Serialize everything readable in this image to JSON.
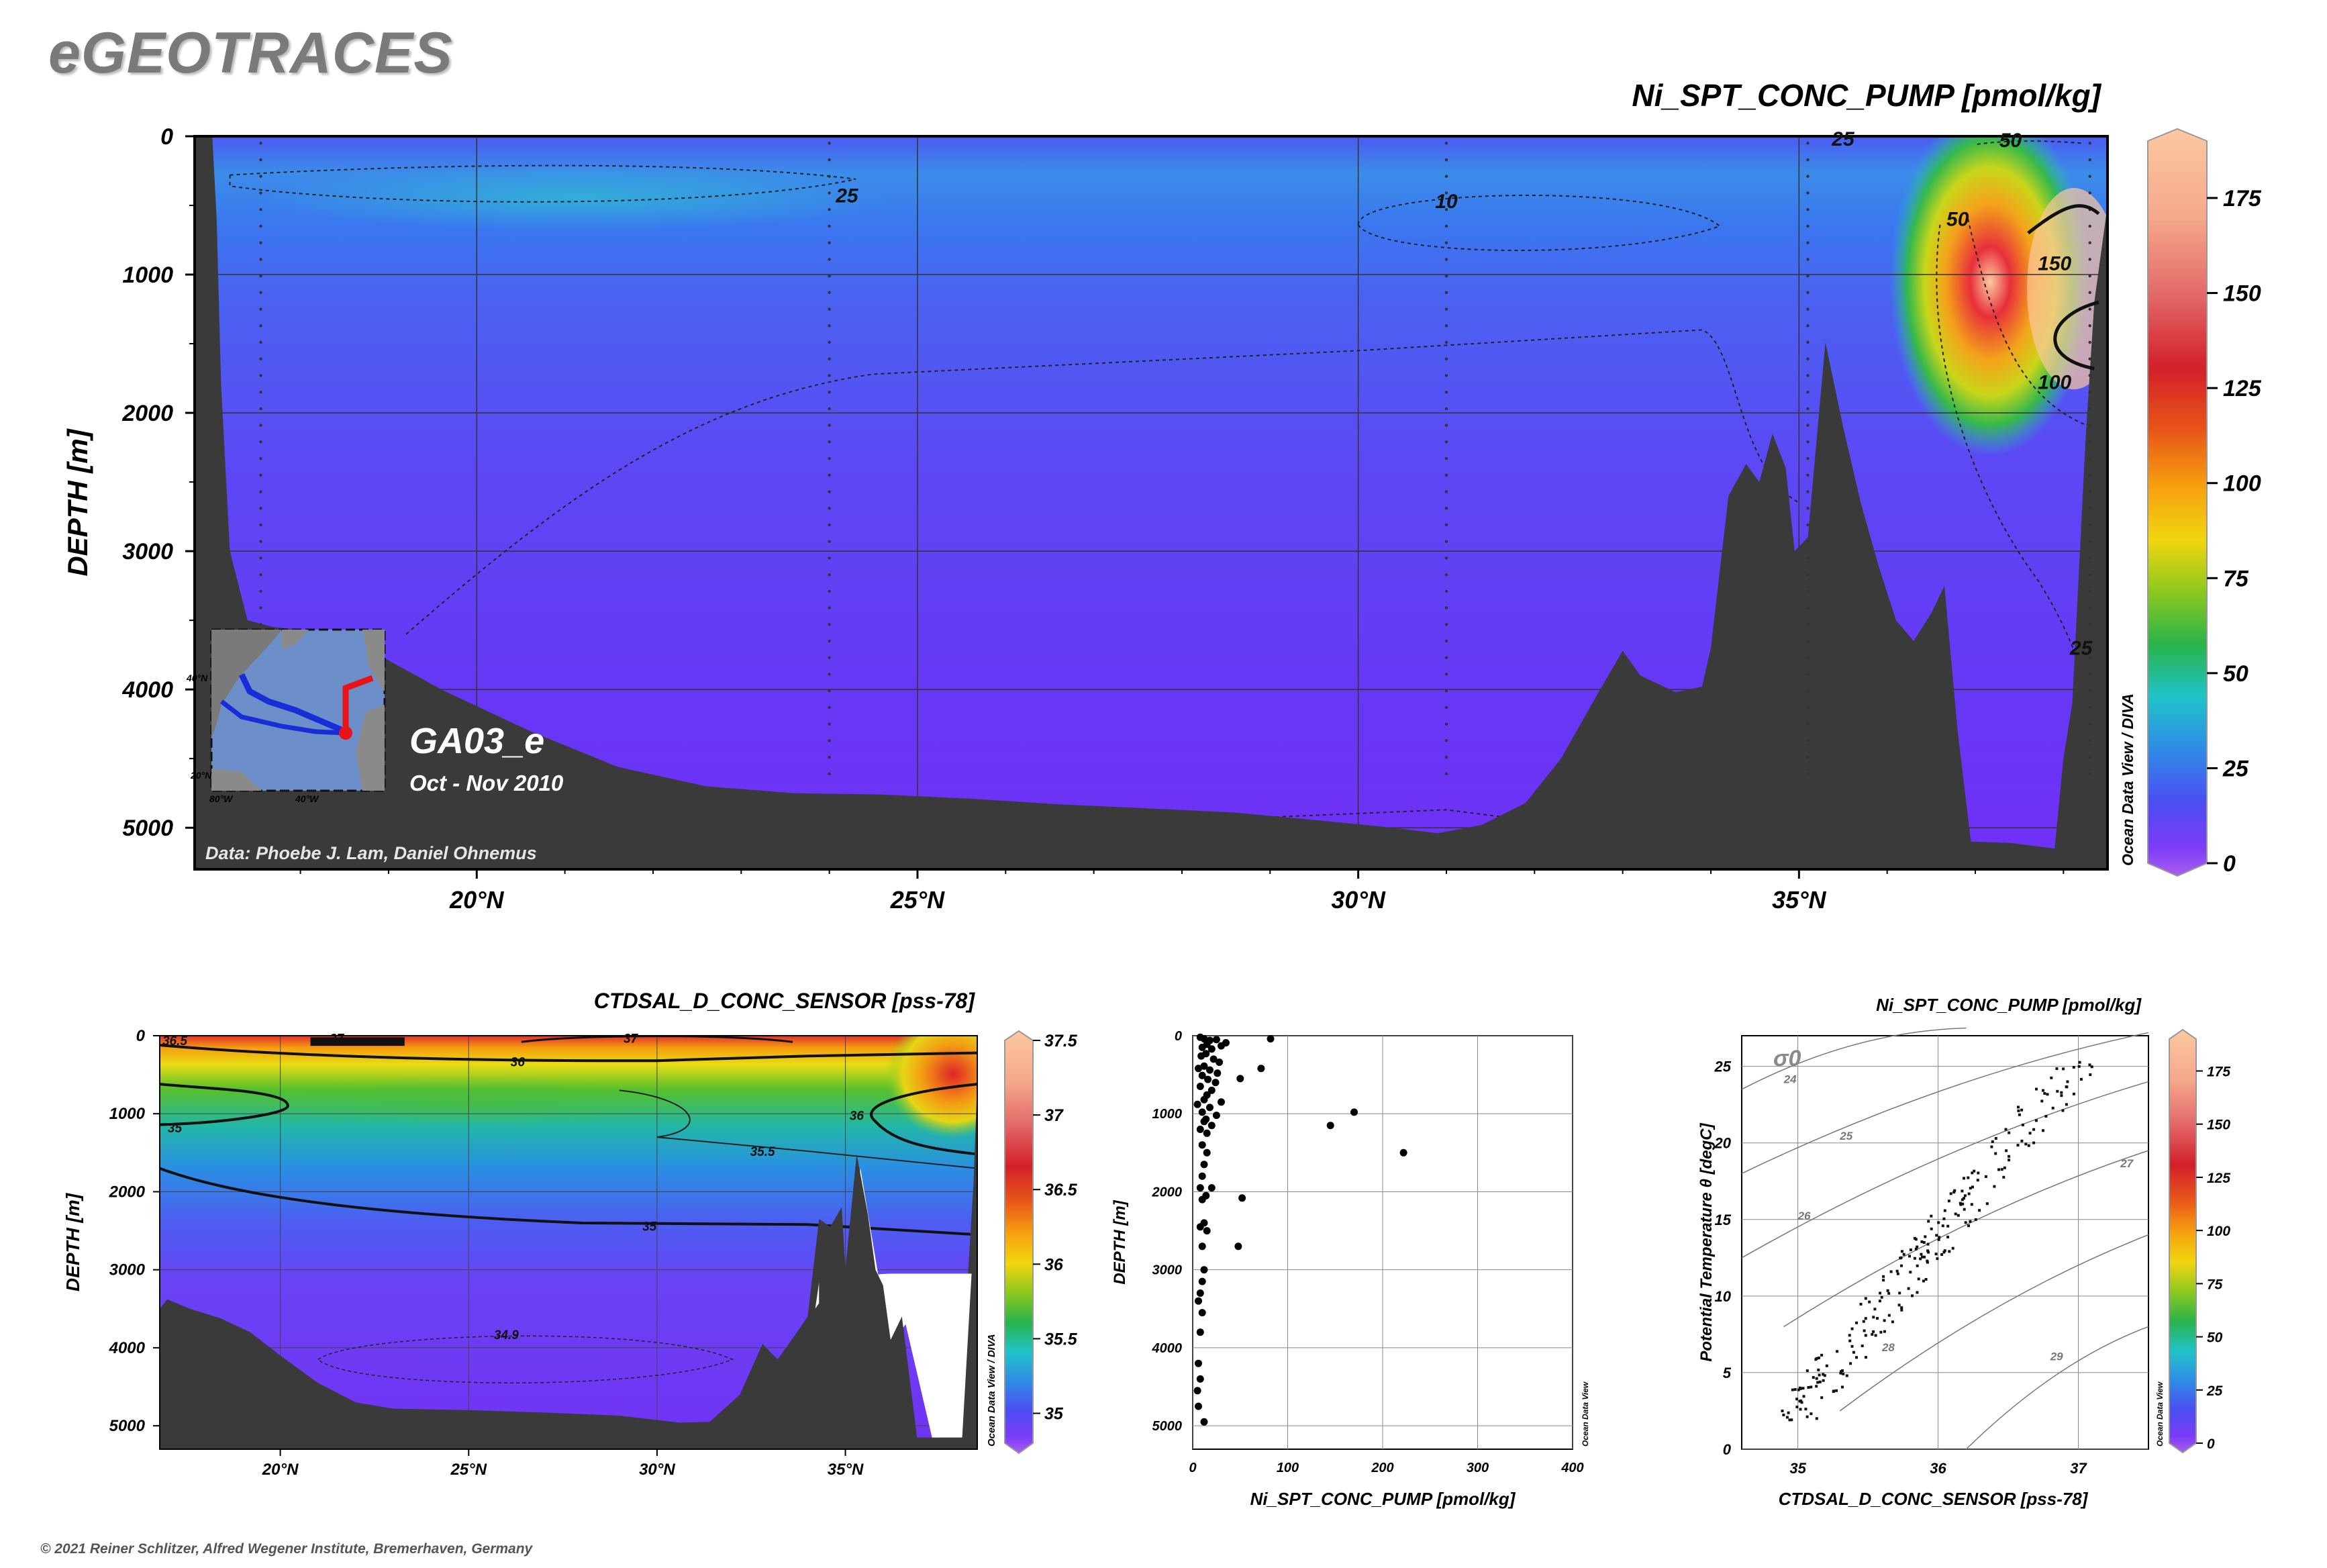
{
  "page": {
    "brand": "eGEOTRACES",
    "copyright": "© 2021 Reiner Schlitzer, Alfred Wegener Institute, Bremerhaven, Germany"
  },
  "colors": {
    "land": "#3a3a3a",
    "background": "#ffffff",
    "contour": "#111111"
  },
  "chart_data": [
    {
      "type": "heatmap",
      "id": "main-section",
      "title": "Ni_SPT_CONC_PUMP [pmol/kg]",
      "ylabel": "DEPTH [m]",
      "xlabel": "",
      "x_ticks": [
        "20°N",
        "25°N",
        "30°N",
        "35°N"
      ],
      "x_tick_values": [
        20,
        25,
        30,
        35
      ],
      "xlim": [
        16.8,
        38.5
      ],
      "y_ticks": [
        "0",
        "1000",
        "2000",
        "3000",
        "4000",
        "5000"
      ],
      "y_tick_values": [
        0,
        1000,
        2000,
        3000,
        4000,
        5000
      ],
      "ylim": [
        0,
        5300
      ],
      "colorbar": {
        "ticks": [
          "0",
          "25",
          "50",
          "75",
          "100",
          "125",
          "150",
          "175"
        ],
        "tick_values": [
          0,
          25,
          50,
          75,
          100,
          125,
          150,
          175
        ],
        "range": [
          0,
          190
        ]
      },
      "contour_labels": [
        {
          "text": "25",
          "lat": 24.2,
          "depth": 430
        },
        {
          "text": "10",
          "lat": 31.0,
          "depth": 470
        },
        {
          "text": "25",
          "lat": 35.5,
          "depth": 20
        },
        {
          "text": "50",
          "lat": 37.4,
          "depth": 30
        },
        {
          "text": "50",
          "lat": 36.8,
          "depth": 600
        },
        {
          "text": "150",
          "lat": 37.9,
          "depth": 920
        },
        {
          "text": "100",
          "lat": 37.9,
          "depth": 1780
        },
        {
          "text": "25",
          "lat": 38.2,
          "depth": 3700
        }
      ],
      "credit": "Data: Phoebe J. Lam, Daniel Ohnemus",
      "section_name": "GA03_e",
      "cruise_dates": "Oct - Nov 2010",
      "watermark": "Ocean Data View / DIVA",
      "inset_map": {
        "lat_labels": [
          "40°N",
          "20°N"
        ],
        "lon_labels": [
          "80°W",
          "40°W"
        ],
        "track_colors": [
          "#1a2bd8",
          "#e8141a"
        ]
      }
    },
    {
      "type": "heatmap",
      "id": "salinity-section",
      "title": "CTDSAL_D_CONC_SENSOR [pss-78]",
      "ylabel": "DEPTH [m]",
      "xlabel": "",
      "x_ticks": [
        "20°N",
        "25°N",
        "30°N",
        "35°N"
      ],
      "x_tick_values": [
        20,
        25,
        30,
        35
      ],
      "xlim": [
        16.8,
        38.5
      ],
      "y_ticks": [
        "0",
        "1000",
        "2000",
        "3000",
        "4000",
        "5000"
      ],
      "y_tick_values": [
        0,
        1000,
        2000,
        3000,
        4000,
        5000
      ],
      "ylim": [
        0,
        5300
      ],
      "colorbar": {
        "ticks": [
          "35",
          "35.5",
          "36",
          "36.5",
          "37",
          "37.5"
        ],
        "tick_values": [
          35,
          35.5,
          36,
          36.5,
          37,
          37.5
        ],
        "range": [
          34.8,
          37.5
        ]
      },
      "contour_labels": [
        {
          "text": "36.5",
          "lat": 17.2,
          "depth": 60
        },
        {
          "text": "37",
          "lat": 21.5,
          "depth": 30
        },
        {
          "text": "37",
          "lat": 29.3,
          "depth": 30
        },
        {
          "text": "36",
          "lat": 26.3,
          "depth": 330
        },
        {
          "text": "36",
          "lat": 35.3,
          "depth": 1020
        },
        {
          "text": "35",
          "lat": 17.2,
          "depth": 1180
        },
        {
          "text": "35.5",
          "lat": 32.8,
          "depth": 1480
        },
        {
          "text": "35",
          "lat": 29.8,
          "depth": 2440
        },
        {
          "text": "34.9",
          "lat": 26.0,
          "depth": 3830
        }
      ],
      "watermark": "Ocean Data View / DIVA"
    },
    {
      "type": "scatter",
      "id": "depth-profile",
      "title": "",
      "xlabel": "Ni_SPT_CONC_PUMP [pmol/kg]",
      "ylabel": "DEPTH [m]",
      "xlim": [
        0,
        400
      ],
      "ylim": [
        0,
        5300
      ],
      "x_ticks": [
        "0",
        "100",
        "200",
        "300",
        "400"
      ],
      "x_tick_values": [
        0,
        100,
        200,
        300,
        400
      ],
      "y_ticks": [
        "0",
        "1000",
        "2000",
        "3000",
        "4000",
        "5000"
      ],
      "y_tick_values": [
        0,
        1000,
        2000,
        3000,
        4000,
        5000
      ],
      "watermark": "Ocean Data View",
      "points": [
        [
          8,
          20
        ],
        [
          12,
          40
        ],
        [
          18,
          60
        ],
        [
          25,
          50
        ],
        [
          15,
          110
        ],
        [
          10,
          150
        ],
        [
          20,
          170
        ],
        [
          30,
          130
        ],
        [
          35,
          90
        ],
        [
          14,
          230
        ],
        [
          9,
          260
        ],
        [
          22,
          300
        ],
        [
          28,
          340
        ],
        [
          12,
          390
        ],
        [
          6,
          420
        ],
        [
          18,
          440
        ],
        [
          26,
          480
        ],
        [
          10,
          510
        ],
        [
          16,
          560
        ],
        [
          24,
          600
        ],
        [
          8,
          650
        ],
        [
          20,
          700
        ],
        [
          15,
          760
        ],
        [
          12,
          820
        ],
        [
          30,
          850
        ],
        [
          5,
          880
        ],
        [
          18,
          920
        ],
        [
          10,
          980
        ],
        [
          25,
          1020
        ],
        [
          14,
          1070
        ],
        [
          12,
          1100
        ],
        [
          20,
          1150
        ],
        [
          8,
          1200
        ],
        [
          15,
          1250
        ],
        [
          10,
          1400
        ],
        [
          15,
          1500
        ],
        [
          12,
          1650
        ],
        [
          10,
          1800
        ],
        [
          8,
          1950
        ],
        [
          14,
          2050
        ],
        [
          10,
          2100
        ],
        [
          12,
          2400
        ],
        [
          8,
          2450
        ],
        [
          15,
          2500
        ],
        [
          10,
          2700
        ],
        [
          12,
          3000
        ],
        [
          10,
          3150
        ],
        [
          8,
          3300
        ],
        [
          6,
          3400
        ],
        [
          10,
          3550
        ],
        [
          8,
          3800
        ],
        [
          6,
          4200
        ],
        [
          8,
          4400
        ],
        [
          5,
          4550
        ],
        [
          6,
          4750
        ],
        [
          12,
          4950
        ],
        [
          82,
          40
        ],
        [
          72,
          420
        ],
        [
          50,
          550
        ],
        [
          52,
          2080
        ],
        [
          48,
          2700
        ],
        [
          145,
          1150
        ],
        [
          170,
          980
        ],
        [
          222,
          1500
        ],
        [
          20,
          1950
        ]
      ]
    },
    {
      "type": "scatter",
      "id": "ts-diagram",
      "title": "Ni_SPT_CONC_PUMP [pmol/kg]",
      "xlabel": "CTDSAL_D_CONC_SENSOR [pss-78]",
      "ylabel": "Potential Temperature θ [degC]",
      "xlim": [
        34.6,
        37.5
      ],
      "ylim": [
        0,
        27
      ],
      "x_ticks": [
        "35",
        "36",
        "37"
      ],
      "x_tick_values": [
        35,
        36,
        37
      ],
      "y_ticks": [
        "0",
        "5",
        "10",
        "15",
        "20",
        "25"
      ],
      "y_tick_values": [
        0,
        5,
        10,
        15,
        20,
        25
      ],
      "sigma_label": "σ0",
      "isopycnal_labels": [
        "24",
        "25",
        "26",
        "27",
        "28",
        "29"
      ],
      "colorbar": {
        "ticks": [
          "0",
          "25",
          "50",
          "75",
          "100",
          "125",
          "150",
          "175"
        ],
        "tick_values": [
          0,
          25,
          50,
          75,
          100,
          125,
          150,
          175
        ],
        "range": [
          0,
          190
        ]
      },
      "watermark": "Ocean Data View"
    }
  ]
}
